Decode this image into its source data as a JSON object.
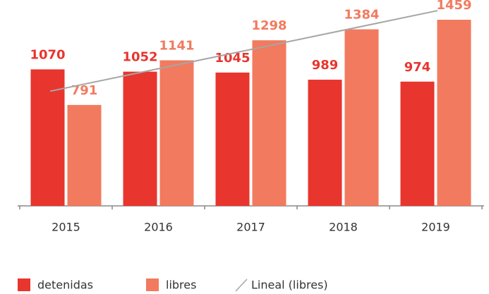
{
  "chart_data": {
    "type": "bar",
    "categories": [
      "2015",
      "2016",
      "2017",
      "2018",
      "2019"
    ],
    "series": [
      {
        "name": "detenidas",
        "color": "#e8352e",
        "values": [
          1070,
          1052,
          1045,
          989,
          974
        ]
      },
      {
        "name": "libres",
        "color": "#f27a5f",
        "values": [
          791,
          1141,
          1298,
          1384,
          1459
        ]
      }
    ],
    "trendline": {
      "name": "Lineal (libres)",
      "color": "#a6a6a6"
    }
  }
}
